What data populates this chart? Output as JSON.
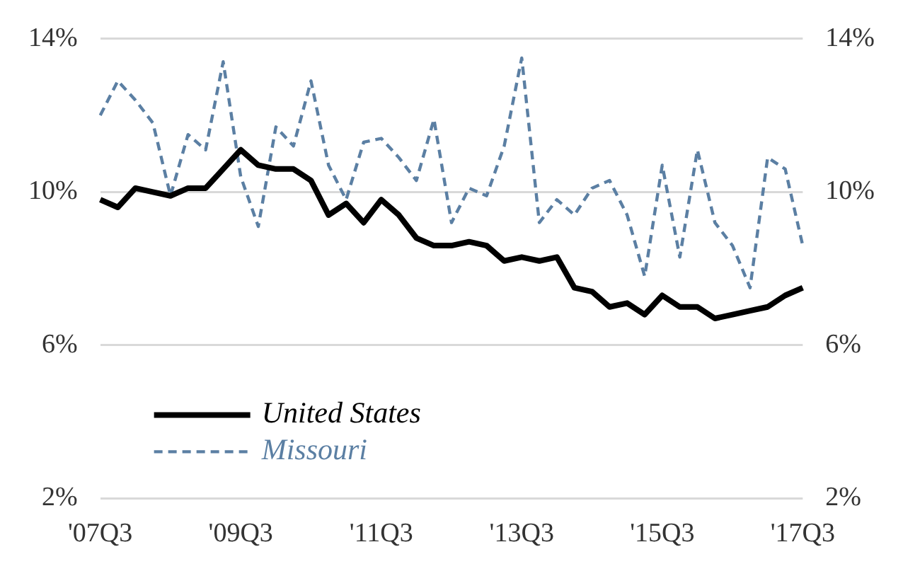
{
  "chart_data": {
    "type": "line",
    "categories": [
      "'07Q3",
      null,
      null,
      null,
      null,
      null,
      null,
      null,
      "'09Q3",
      null,
      null,
      null,
      null,
      null,
      null,
      null,
      "'11Q3",
      null,
      null,
      null,
      null,
      null,
      null,
      null,
      "'13Q3",
      null,
      null,
      null,
      null,
      null,
      null,
      null,
      "'15Q3",
      null,
      null,
      null,
      null,
      null,
      null,
      null,
      "'17Q3"
    ],
    "series": [
      {
        "name": "United States",
        "color": "#000000",
        "line_style": "solid",
        "values": [
          9.8,
          9.6,
          10.1,
          10.0,
          9.9,
          10.1,
          10.1,
          10.6,
          11.1,
          10.7,
          10.6,
          10.6,
          10.3,
          9.4,
          9.7,
          9.2,
          9.8,
          9.4,
          8.8,
          8.6,
          8.6,
          8.7,
          8.6,
          8.2,
          8.3,
          8.2,
          8.3,
          7.5,
          7.4,
          7.0,
          7.1,
          6.8,
          7.3,
          7.0,
          7.0,
          6.7,
          6.8,
          6.9,
          7.0,
          7.3,
          7.5
        ]
      },
      {
        "name": "Missouri",
        "color": "#5b7fa3",
        "line_style": "dashed",
        "values": [
          12.0,
          12.9,
          12.4,
          11.8,
          9.9,
          11.5,
          11.1,
          13.4,
          10.4,
          9.1,
          11.7,
          11.2,
          12.9,
          10.7,
          9.8,
          11.3,
          11.4,
          10.9,
          10.3,
          11.9,
          9.2,
          10.1,
          9.9,
          11.2,
          13.5,
          9.2,
          9.8,
          9.4,
          10.1,
          10.3,
          9.4,
          7.8,
          10.7,
          8.3,
          11.1,
          9.2,
          8.6,
          7.5,
          10.9,
          10.6,
          8.6
        ]
      }
    ],
    "ylim": [
      2,
      14
    ],
    "yticks": [
      {
        "value": 2,
        "label": "2%"
      },
      {
        "value": 6,
        "label": "6%"
      },
      {
        "value": 10,
        "label": "10%"
      },
      {
        "value": 14,
        "label": "14%"
      }
    ],
    "y2lim": [
      2,
      14
    ],
    "y2ticks": [
      {
        "value": 2,
        "label": "2%"
      },
      {
        "value": 6,
        "label": "6%"
      },
      {
        "value": 10,
        "label": "10%"
      },
      {
        "value": 14,
        "label": "14%"
      }
    ],
    "grid": "y",
    "legend": "bottom left",
    "marker": "none"
  }
}
